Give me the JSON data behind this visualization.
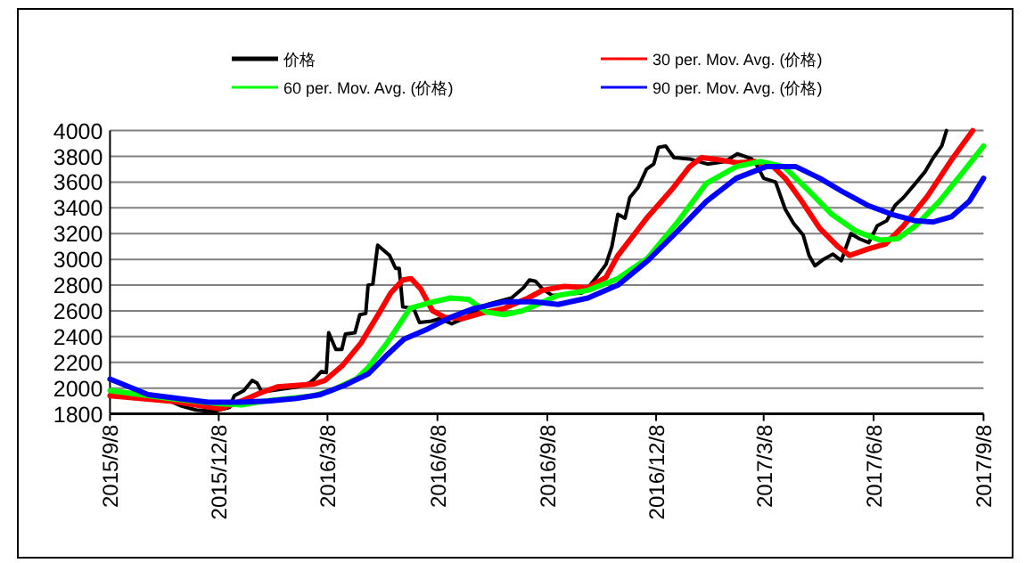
{
  "chart_data": {
    "type": "line",
    "legend": "top",
    "grid": "y",
    "xlim": [
      "2015-09-08",
      "2017-09-08"
    ],
    "ylim": [
      1800,
      4000
    ],
    "xticks": [
      {
        "value": "2015-09-08",
        "label": "2015/9/8"
      },
      {
        "value": "2015-12-08",
        "label": "2015/12/8"
      },
      {
        "value": "2016-03-08",
        "label": "2016/3/8"
      },
      {
        "value": "2016-06-08",
        "label": "2016/6/8"
      },
      {
        "value": "2016-09-08",
        "label": "2016/9/8"
      },
      {
        "value": "2016-12-08",
        "label": "2016/12/8"
      },
      {
        "value": "2017-03-08",
        "label": "2017/3/8"
      },
      {
        "value": "2017-06-08",
        "label": "2017/6/8"
      },
      {
        "value": "2017-09-08",
        "label": "2017/9/8"
      }
    ],
    "yticks": [
      1800,
      2000,
      2200,
      2400,
      2600,
      2800,
      3000,
      3200,
      3400,
      3600,
      3800,
      4000
    ],
    "series": [
      {
        "name": "价格",
        "color": "#000000",
        "x": [
          "2015-09-08",
          "2015-10-28",
          "2015-11-07",
          "2015-11-19",
          "2015-12-04",
          "2015-12-17",
          "2015-12-21",
          "2015-12-29",
          "2016-01-05",
          "2016-01-09",
          "2016-01-13",
          "2016-02-12",
          "2016-02-22",
          "2016-02-27",
          "2016-03-03",
          "2016-03-07",
          "2016-03-09",
          "2016-03-15",
          "2016-03-20",
          "2016-03-23",
          "2016-03-31",
          "2016-04-04",
          "2016-04-09",
          "2016-04-11",
          "2016-04-15",
          "2016-04-19",
          "2016-04-24",
          "2016-04-29",
          "2016-05-04",
          "2016-05-07",
          "2016-05-10",
          "2016-05-19",
          "2016-05-24",
          "2016-06-03",
          "2016-06-10",
          "2016-06-20",
          "2016-06-30",
          "2016-07-10",
          "2016-07-20",
          "2016-08-09",
          "2016-08-19",
          "2016-08-24",
          "2016-08-29",
          "2016-09-04",
          "2016-09-12",
          "2016-10-07",
          "2016-10-12",
          "2016-10-19",
          "2016-10-27",
          "2016-11-01",
          "2016-11-06",
          "2016-11-12",
          "2016-11-16",
          "2016-11-23",
          "2016-11-30",
          "2016-12-06",
          "2016-12-10",
          "2016-12-16",
          "2016-12-23",
          "2017-01-05",
          "2017-01-20",
          "2017-02-04",
          "2017-02-14",
          "2017-02-26",
          "2017-03-03",
          "2017-03-08",
          "2017-03-18",
          "2017-03-26",
          "2017-04-02",
          "2017-04-10",
          "2017-04-15",
          "2017-04-20",
          "2017-04-27",
          "2017-05-05",
          "2017-05-12",
          "2017-05-20",
          "2017-05-27",
          "2017-06-04",
          "2017-06-11",
          "2017-06-19",
          "2017-06-26",
          "2017-07-03",
          "2017-07-13",
          "2017-07-21",
          "2017-07-28",
          "2017-08-04",
          "2017-08-08"
        ],
        "values": [
          1950,
          1900,
          1860,
          1830,
          1820,
          1850,
          1940,
          1980,
          2060,
          2040,
          1970,
          2010,
          2040,
          2080,
          2130,
          2120,
          2430,
          2300,
          2300,
          2420,
          2430,
          2570,
          2580,
          2800,
          2810,
          3110,
          3070,
          3030,
          2930,
          2930,
          2630,
          2620,
          2510,
          2520,
          2540,
          2500,
          2540,
          2600,
          2650,
          2700,
          2780,
          2840,
          2830,
          2770,
          2720,
          2740,
          2780,
          2860,
          2960,
          3100,
          3350,
          3320,
          3480,
          3560,
          3700,
          3740,
          3870,
          3880,
          3790,
          3780,
          3740,
          3760,
          3820,
          3780,
          3720,
          3630,
          3600,
          3390,
          3280,
          3190,
          3030,
          2950,
          3000,
          3040,
          2990,
          3200,
          3160,
          3130,
          3260,
          3300,
          3420,
          3480,
          3590,
          3680,
          3790,
          3880,
          4000
        ]
      },
      {
        "name": "30 per. Mov. Avg. (价格)",
        "color": "#ff0000",
        "x": [
          "2015-09-08",
          "2015-10-28",
          "2015-12-09",
          "2015-12-27",
          "2016-01-11",
          "2016-01-26",
          "2016-02-25",
          "2016-03-06",
          "2016-03-21",
          "2016-04-05",
          "2016-04-20",
          "2016-04-30",
          "2016-05-10",
          "2016-05-17",
          "2016-05-25",
          "2016-06-04",
          "2016-06-14",
          "2016-06-29",
          "2016-07-14",
          "2016-08-03",
          "2016-08-23",
          "2016-09-04",
          "2016-09-22",
          "2016-10-12",
          "2016-10-27",
          "2016-11-06",
          "2016-12-01",
          "2016-12-21",
          "2017-01-05",
          "2017-01-15",
          "2017-01-25",
          "2017-02-14",
          "2017-03-01",
          "2017-03-16",
          "2017-03-26",
          "2017-04-09",
          "2017-04-24",
          "2017-05-09",
          "2017-05-19",
          "2017-06-03",
          "2017-06-18",
          "2017-07-03",
          "2017-07-23",
          "2017-08-12",
          "2017-08-30"
        ],
        "values": [
          1940,
          1900,
          1840,
          1900,
          1960,
          2010,
          2030,
          2060,
          2180,
          2350,
          2580,
          2740,
          2840,
          2850,
          2770,
          2600,
          2550,
          2540,
          2580,
          2620,
          2700,
          2760,
          2790,
          2780,
          2860,
          3030,
          3330,
          3540,
          3720,
          3790,
          3780,
          3750,
          3760,
          3720,
          3630,
          3450,
          3240,
          3100,
          3030,
          3080,
          3120,
          3260,
          3490,
          3770,
          4000
        ]
      },
      {
        "name": "60 per. Mov. Avg. (价格)",
        "color": "#00ff00",
        "x": [
          "2015-09-08",
          "2015-10-28",
          "2015-12-07",
          "2015-12-27",
          "2016-01-16",
          "2016-02-05",
          "2016-02-25",
          "2016-03-11",
          "2016-04-01",
          "2016-04-11",
          "2016-04-26",
          "2016-05-16",
          "2016-05-31",
          "2016-06-19",
          "2016-07-04",
          "2016-07-19",
          "2016-08-03",
          "2016-08-18",
          "2016-08-28",
          "2016-09-17",
          "2016-10-12",
          "2016-11-06",
          "2016-12-01",
          "2016-12-26",
          "2017-01-19",
          "2017-02-13",
          "2017-03-05",
          "2017-03-25",
          "2017-04-14",
          "2017-05-04",
          "2017-05-24",
          "2017-06-13",
          "2017-06-28",
          "2017-07-13",
          "2017-08-02",
          "2017-08-22",
          "2017-09-08"
        ],
        "values": [
          1980,
          1920,
          1880,
          1870,
          1900,
          1920,
          1940,
          1980,
          2070,
          2160,
          2340,
          2620,
          2660,
          2700,
          2690,
          2590,
          2570,
          2600,
          2640,
          2720,
          2760,
          2850,
          3010,
          3290,
          3590,
          3720,
          3760,
          3720,
          3540,
          3350,
          3220,
          3150,
          3160,
          3260,
          3450,
          3680,
          3880
        ]
      },
      {
        "name": "90 per. Mov. Avg. (价格)",
        "color": "#0000ff",
        "x": [
          "2015-09-08",
          "2015-10-10",
          "2015-11-04",
          "2015-11-29",
          "2015-12-24",
          "2016-01-18",
          "2016-02-11",
          "2016-03-02",
          "2016-03-22",
          "2016-04-11",
          "2016-04-26",
          "2016-05-11",
          "2016-05-31",
          "2016-06-19",
          "2016-07-09",
          "2016-08-03",
          "2016-08-28",
          "2016-09-17",
          "2016-10-12",
          "2016-11-06",
          "2016-12-01",
          "2016-12-26",
          "2017-01-19",
          "2017-02-13",
          "2017-03-10",
          "2017-04-04",
          "2017-04-24",
          "2017-05-14",
          "2017-06-03",
          "2017-06-23",
          "2017-07-13",
          "2017-07-28",
          "2017-08-12",
          "2017-08-27",
          "2017-09-08"
        ],
        "values": [
          2070,
          1950,
          1920,
          1890,
          1890,
          1900,
          1920,
          1950,
          2020,
          2110,
          2250,
          2380,
          2460,
          2550,
          2620,
          2670,
          2670,
          2650,
          2700,
          2800,
          2990,
          3220,
          3450,
          3630,
          3720,
          3720,
          3630,
          3520,
          3420,
          3350,
          3300,
          3290,
          3330,
          3450,
          3630
        ]
      }
    ]
  }
}
